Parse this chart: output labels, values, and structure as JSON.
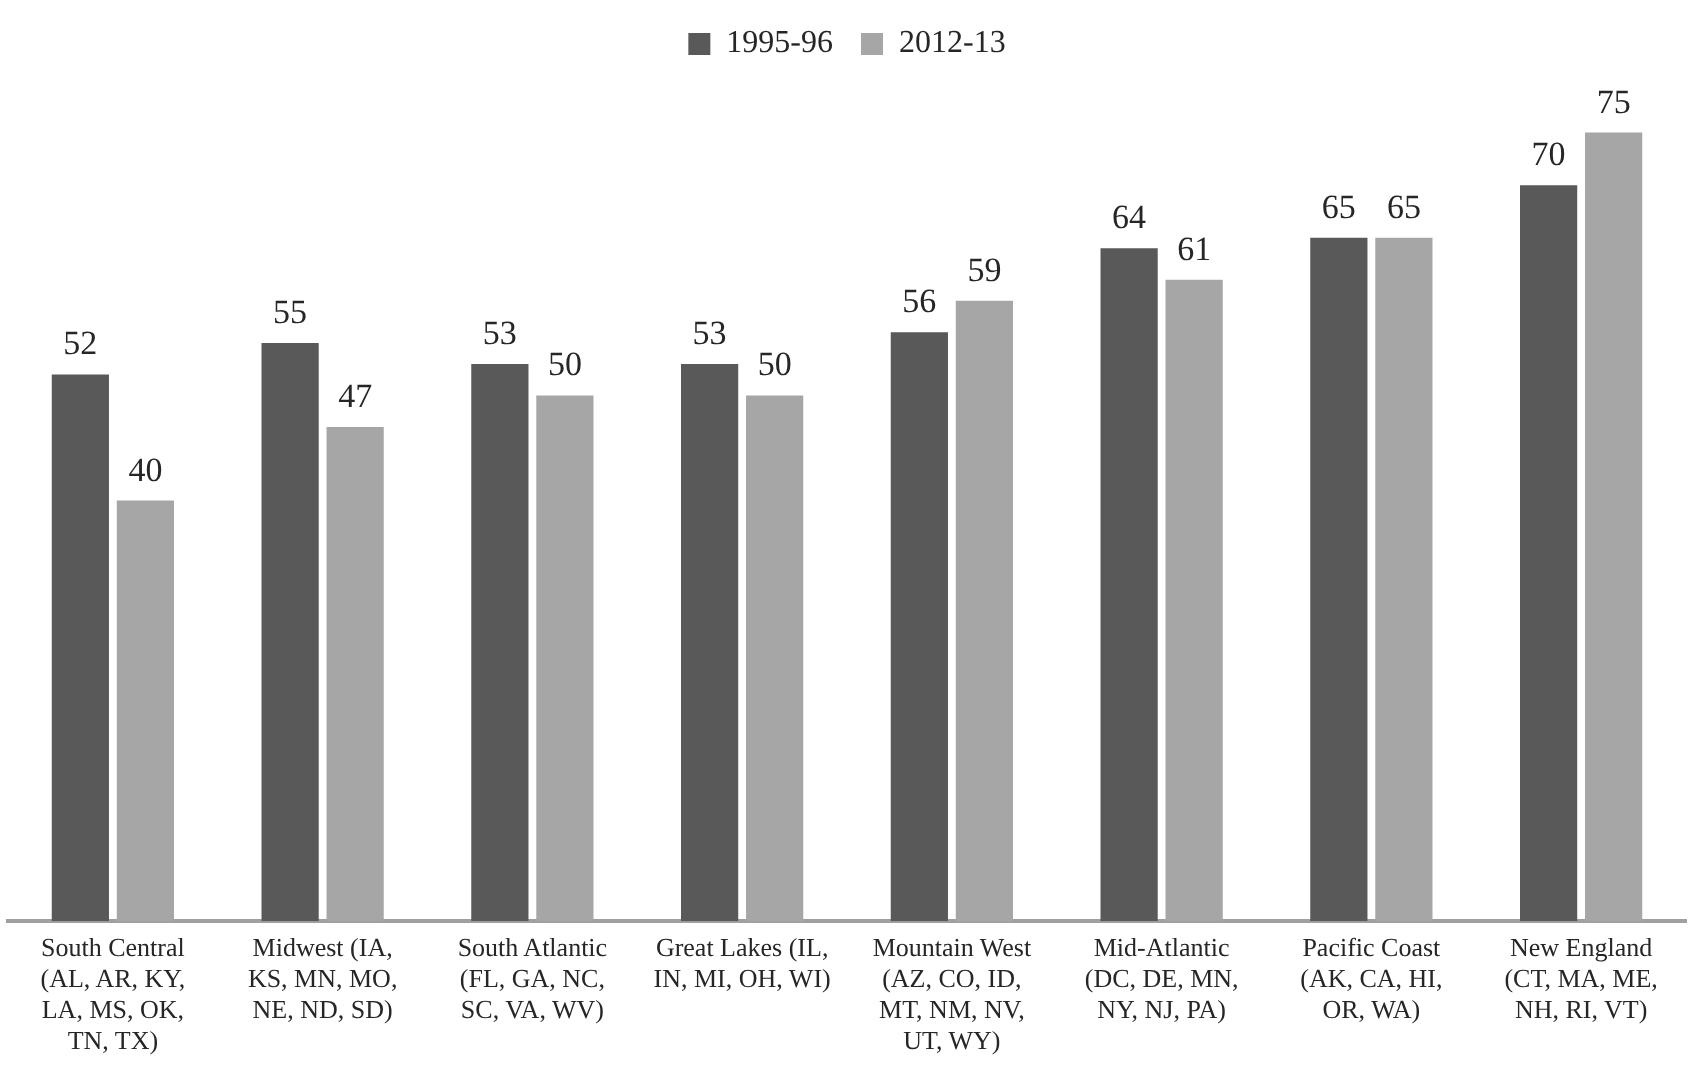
{
  "chart_data": {
    "type": "bar",
    "categories": [
      "South Central (AL, AR, KY, LA, MS, OK, TN, TX)",
      "Midwest (IA, KS, MN, MO, NE, ND, SD)",
      "South Atlantic (FL, GA, NC, SC, VA, WV)",
      "Great Lakes (IL, IN, MI, OH, WI)",
      "Mountain West (AZ, CO, ID, MT, NM, NV, UT, WY)",
      "Mid-Atlantic (DC, DE, MN, NY, NJ, PA)",
      "Pacific Coast (AK, CA, HI, OR, WA)",
      "New England (CT, MA, ME, NH, RI, VT)"
    ],
    "series": [
      {
        "name": "1995-96",
        "color": "#595959",
        "values": [
          52,
          55,
          53,
          53,
          56,
          64,
          65,
          70
        ]
      },
      {
        "name": "2012-13",
        "color": "#a6a6a6",
        "values": [
          40,
          47,
          50,
          50,
          59,
          61,
          65,
          75
        ]
      }
    ],
    "data_labels": true,
    "legend": "top",
    "grid": false,
    "tick_labels": "x"
  }
}
